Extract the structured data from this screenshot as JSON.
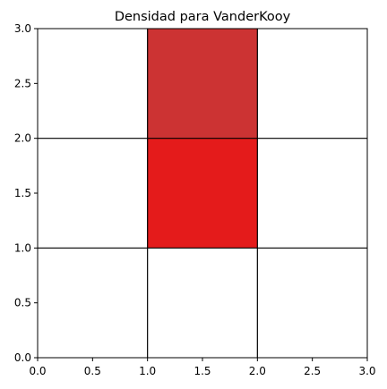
{
  "chart_data": {
    "type": "heatmap",
    "title": "Densidad para VanderKooy",
    "xlabel": "",
    "ylabel": "",
    "xlim": [
      0,
      3
    ],
    "ylim": [
      0,
      3
    ],
    "x_ticks": [
      "0.0",
      "0.5",
      "1.0",
      "1.5",
      "2.0",
      "2.5",
      "3.0"
    ],
    "y_ticks": [
      "0.0",
      "0.5",
      "1.0",
      "1.5",
      "2.0",
      "2.5",
      "3.0"
    ],
    "grid": true,
    "grid_lines": [
      1,
      2
    ],
    "cells": [
      {
        "x0": 1,
        "x1": 2,
        "y0": 1,
        "y1": 2,
        "color": "#e41b1b"
      },
      {
        "x0": 1,
        "x1": 2,
        "y0": 2,
        "y1": 3,
        "color": "#cc3333"
      }
    ]
  }
}
